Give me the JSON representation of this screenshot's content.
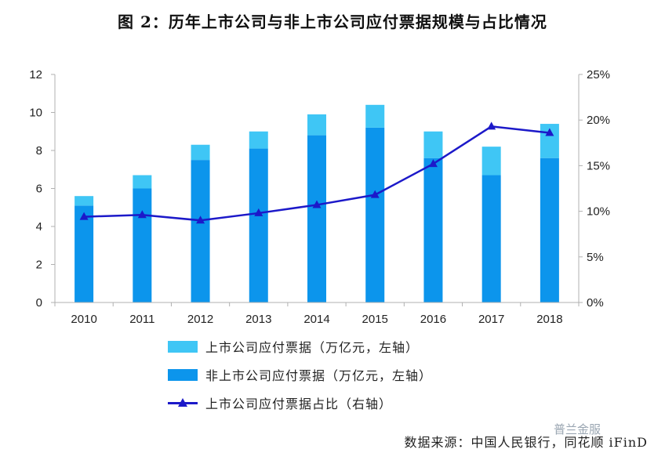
{
  "title": "图 2：历年上市公司与非上市公司应付票据规模与占比情况",
  "source": "数据来源：中国人民银行，同花顺 iFinD",
  "watermark": "普兰金服",
  "colors": {
    "listed": "#3fc6f5",
    "unlisted": "#0c95ec",
    "ratio_line": "#1c19c9",
    "axis": "#b0b0b0"
  },
  "chart_data": {
    "type": "bar",
    "stacked": true,
    "categories": [
      "2010",
      "2011",
      "2012",
      "2013",
      "2014",
      "2015",
      "2016",
      "2017",
      "2018"
    ],
    "series": [
      {
        "name": "非上市公司应付票据（万亿元，左轴）",
        "axis": "left",
        "values": [
          5.1,
          6.0,
          7.5,
          8.1,
          8.8,
          9.2,
          7.6,
          6.7,
          7.6
        ]
      },
      {
        "name": "上市公司应付票据（万亿元，左轴）",
        "axis": "left",
        "values": [
          0.5,
          0.7,
          0.8,
          0.9,
          1.1,
          1.2,
          1.4,
          1.5,
          1.8
        ]
      },
      {
        "name": "上市公司应付票据占比（右轴）",
        "axis": "right",
        "type": "line",
        "marker": "triangle",
        "values": [
          9.4,
          9.6,
          9.0,
          9.8,
          10.7,
          11.8,
          15.2,
          19.3,
          18.6
        ]
      }
    ],
    "left_axis": {
      "ylim": [
        0,
        12
      ],
      "ticks": [
        0,
        2,
        4,
        6,
        8,
        10,
        12
      ]
    },
    "right_axis": {
      "ylim": [
        0,
        25
      ],
      "ticks": [
        "0%",
        "5%",
        "10%",
        "15%",
        "20%",
        "25%"
      ]
    },
    "legend": {
      "position": "bottom-center",
      "items": [
        "上市公司应付票据（万亿元，左轴）",
        "非上市公司应付票据（万亿元，左轴）",
        "上市公司应付票据占比（右轴）"
      ]
    },
    "grid": false
  }
}
